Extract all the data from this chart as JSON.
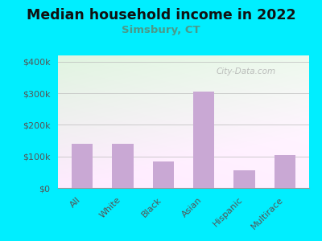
{
  "title": "Median household income in 2022",
  "subtitle": "Simsbury, CT",
  "categories": [
    "All",
    "White",
    "Black",
    "Asian",
    "Hispanic",
    "Multirace"
  ],
  "values": [
    140000,
    140000,
    85000,
    305000,
    55000,
    105000
  ],
  "bar_color": "#c9a8d4",
  "background_outer": "#00eeff",
  "title_color": "#111111",
  "subtitle_color": "#4a9a8a",
  "tick_label_color": "#555555",
  "ylabel_ticks": [
    0,
    100000,
    200000,
    300000,
    400000
  ],
  "ylabel_labels": [
    "$0",
    "$100k",
    "$200k",
    "$300k",
    "$400k"
  ],
  "ylim": [
    0,
    420000
  ],
  "watermark": "City-Data.com",
  "title_fontsize": 12.5,
  "subtitle_fontsize": 9.5,
  "tick_fontsize": 8
}
